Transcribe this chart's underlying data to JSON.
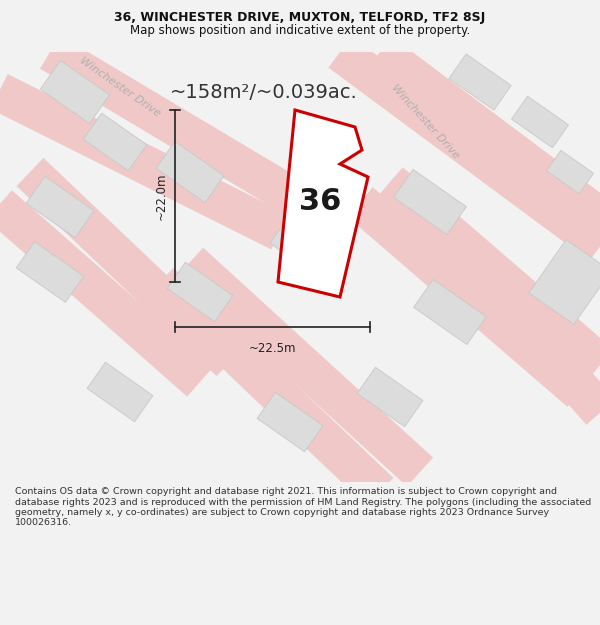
{
  "title_line1": "36, WINCHESTER DRIVE, MUXTON, TELFORD, TF2 8SJ",
  "title_line2": "Map shows position and indicative extent of the property.",
  "area_text": "~158m²/~0.039ac.",
  "label_36": "36",
  "dim_height": "~22.0m",
  "dim_width": "~22.5m",
  "road_label_topleft": "Winchester Drive",
  "road_label_right": "Winchester Drive",
  "footer_text": "Contains OS data © Crown copyright and database right 2021. This information is subject to Crown copyright and database rights 2023 and is reproduced with the permission of HM Land Registry. The polygons (including the associated geometry, namely x, y co-ordinates) are subject to Crown copyright and database rights 2023 Ordnance Survey 100026316.",
  "bg_color": "#f2f2f2",
  "map_bg": "#ebebeb",
  "plot_color": "#cc0000",
  "plot_fill": "#ffffff",
  "building_color": "#dcdcdc",
  "road_line_color": "#f0c8c8",
  "road_edge_color": "#e8a8a8",
  "dim_color": "#222222",
  "road_text_color": "#b0b0b0",
  "figsize": [
    6.0,
    6.25
  ],
  "dpi": 100,
  "title_fontsize": 9,
  "title_bold": true,
  "subtitle_fontsize": 8.5,
  "area_fontsize": 14,
  "label_fontsize": 22,
  "road_label_fontsize": 8,
  "dim_fontsize": 8.5,
  "footer_fontsize": 6.8
}
